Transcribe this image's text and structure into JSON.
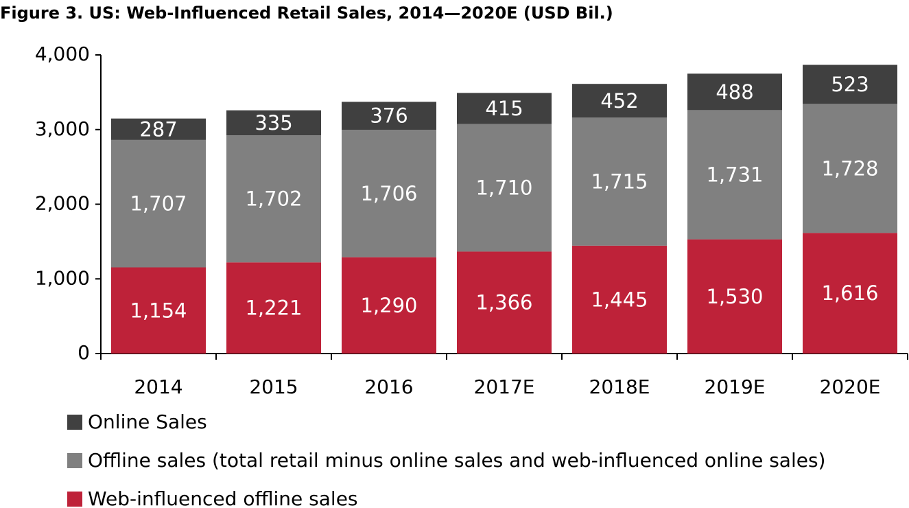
{
  "chart_data": {
    "type": "stacked_bar",
    "title": "Figure 3. US: Web-Influenced Retail Sales, 2014—2020E (USD Bil.)",
    "categories": [
      "2014",
      "2015",
      "2016",
      "2017E",
      "2018E",
      "2019E",
      "2020E"
    ],
    "series": [
      {
        "name": "Web-influenced offline sales",
        "color": "#be2239",
        "values": [
          1154,
          1221,
          1290,
          1366,
          1445,
          1530,
          1616
        ],
        "value_labels": [
          "1,154",
          "1,221",
          "1,290",
          "1,366",
          "1,445",
          "1,530",
          "1,616"
        ]
      },
      {
        "name": "Offline sales (total retail minus online sales and web-influenced online sales)",
        "color": "#808080",
        "values": [
          1707,
          1702,
          1706,
          1710,
          1715,
          1731,
          1728
        ],
        "value_labels": [
          "1,707",
          "1,702",
          "1,706",
          "1,710",
          "1,715",
          "1,731",
          "1,728"
        ]
      },
      {
        "name": "Online Sales",
        "color": "#404040",
        "values": [
          287,
          335,
          376,
          415,
          452,
          488,
          523
        ]
      }
    ],
    "ylim": [
      0,
      4000
    ],
    "yticks": [
      0,
      {
        "value": 1000,
        "label": "1,000"
      },
      {
        "value": 2000,
        "label": "2,000"
      },
      {
        "value": 3000,
        "label": "3,000"
      },
      {
        "value": 4000,
        "label": "4,000"
      }
    ],
    "grid": false,
    "legend": "bottom-left"
  }
}
